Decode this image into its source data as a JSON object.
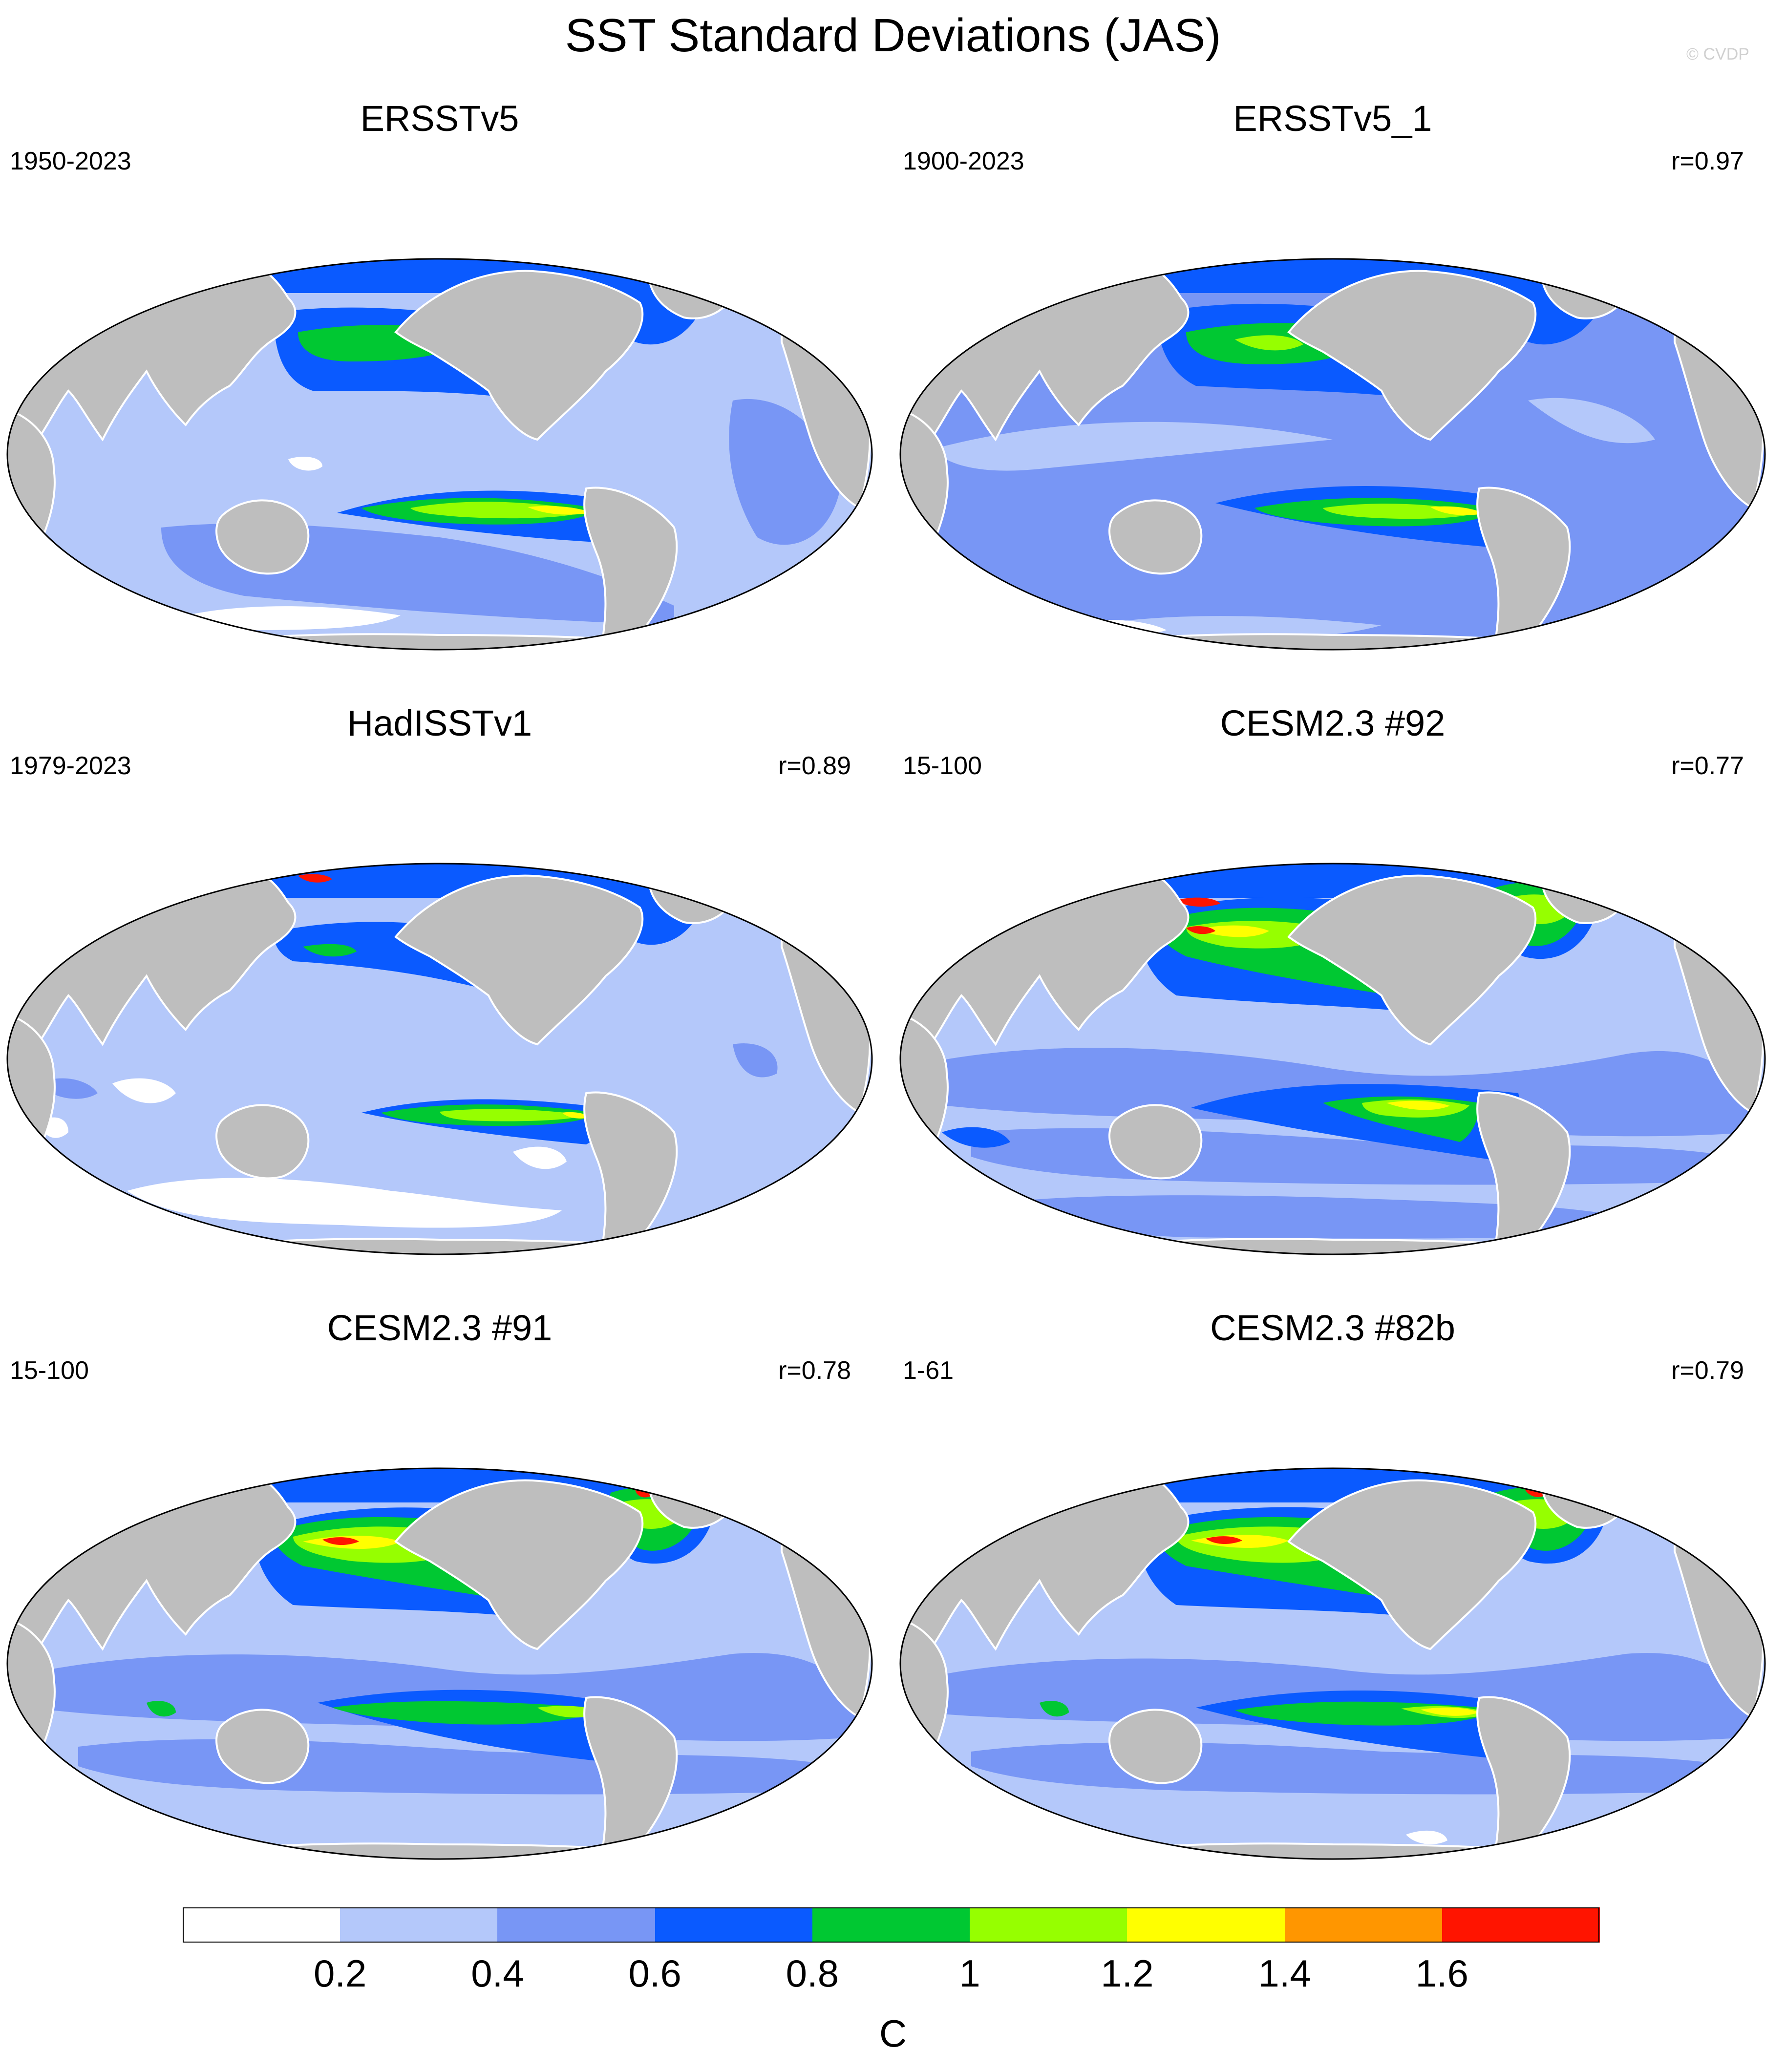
{
  "title": "SST Standard Deviations (JAS)",
  "credit": "© CVDP",
  "panels": [
    {
      "title": "ERSSTv5",
      "period": "1950-2023",
      "r": ""
    },
    {
      "title": "ERSSTv5_1",
      "period": "1900-2023",
      "r": "r=0.97"
    },
    {
      "title": "HadISSTv1",
      "period": "1979-2023",
      "r": "r=0.89"
    },
    {
      "title": "CESM2.3 #92",
      "period": "15-100",
      "r": "r=0.77"
    },
    {
      "title": "CESM2.3 #91",
      "period": "15-100",
      "r": "r=0.78"
    },
    {
      "title": "CESM2.3 #82b",
      "period": "1-61",
      "r": "r=0.79"
    }
  ],
  "colorbar": {
    "unit": "C",
    "ticks": [
      "0.2",
      "0.4",
      "0.6",
      "0.8",
      "1",
      "1.2",
      "1.4",
      "1.6"
    ],
    "colors": [
      "#ffffff",
      "#b4c8fa",
      "#7896f5",
      "#0a5aff",
      "#00c832",
      "#96ff00",
      "#ffff00",
      "#ff9600",
      "#ff1400"
    ]
  },
  "map_colors": {
    "land": "#bebebe",
    "coast": "#ffffff"
  }
}
